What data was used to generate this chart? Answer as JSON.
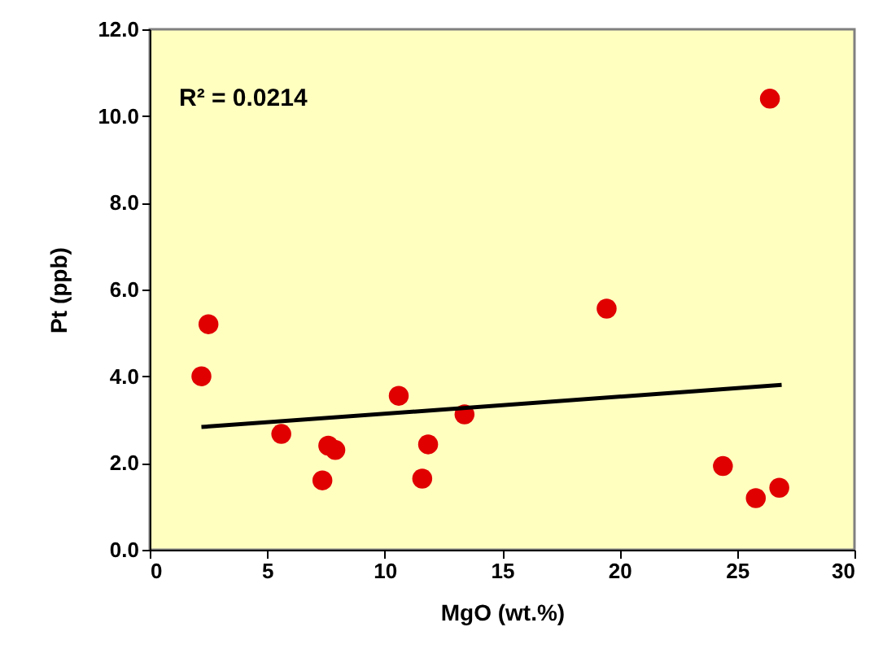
{
  "chart_data": {
    "type": "scatter",
    "xlabel": "MgO (wt.%)",
    "ylabel": "Pt (ppb)",
    "annotations": [
      "R² = 0.0214"
    ],
    "xlim": [
      0,
      30
    ],
    "xticks": [
      0,
      5,
      10,
      15,
      20,
      25,
      30
    ],
    "ylim": [
      0,
      12
    ],
    "yticks": [
      {
        "value": 0,
        "label": "0.0"
      },
      {
        "value": 2,
        "label": "2.0"
      },
      {
        "value": 4,
        "label": "4.0"
      },
      {
        "value": 6,
        "label": "6.0"
      },
      {
        "value": 8,
        "label": "8.0"
      },
      {
        "value": 10,
        "label": "10.0"
      },
      {
        "value": 12,
        "label": "12.0"
      }
    ],
    "grid": false,
    "series": [
      {
        "color": "#e00000",
        "marker": "circle",
        "x": [
          2.2,
          2.5,
          5.6,
          7.35,
          7.6,
          7.9,
          10.6,
          11.6,
          11.85,
          13.4,
          19.45,
          24.4,
          25.8,
          26.4,
          26.8
        ],
        "values": [
          4.0,
          5.2,
          2.67,
          1.6,
          2.4,
          2.3,
          3.55,
          1.64,
          2.43,
          3.12,
          5.56,
          1.93,
          1.19,
          10.4,
          1.43
        ]
      },
      {
        "type": "line",
        "color": "#000000",
        "x": [
          2.2,
          26.9
        ],
        "values": [
          2.83,
          3.8
        ],
        "line_style": "solid",
        "marker": "none"
      }
    ]
  }
}
